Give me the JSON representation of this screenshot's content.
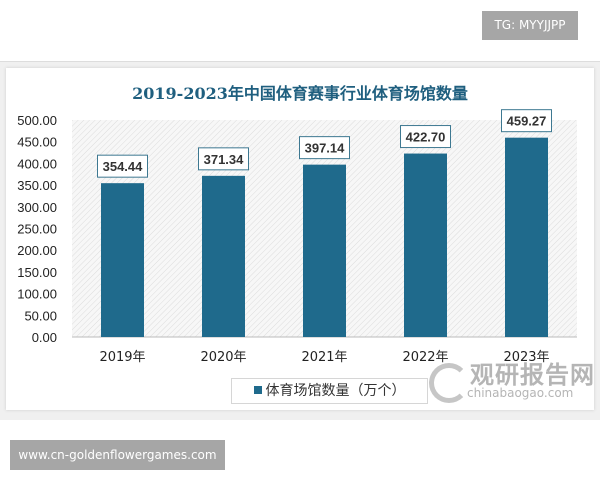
{
  "badge_top": "TG: MYYJJPP",
  "badge_bottom": "www.cn-goldenflowergames.com",
  "watermark": {
    "cn": "观研报告网",
    "en": "chinabaogao.com"
  },
  "chart_data": {
    "type": "bar",
    "title": "2019-2023年中国体育赛事行业体育场馆数量",
    "categories": [
      "2019年",
      "2020年",
      "2021年",
      "2022年",
      "2023年"
    ],
    "series": [
      {
        "name": "体育场馆数量（万个）",
        "values": [
          354.44,
          371.34,
          397.14,
          422.7,
          459.27
        ],
        "color": "#1f6a8c"
      }
    ],
    "data_labels": [
      "354.44",
      "371.34",
      "397.14",
      "422.70",
      "459.27"
    ],
    "ylim": [
      0,
      500
    ],
    "yticks": [
      "0.00",
      "50.00",
      "100.00",
      "150.00",
      "200.00",
      "250.00",
      "300.00",
      "350.00",
      "400.00",
      "450.00",
      "500.00"
    ],
    "grid": false,
    "legend": "bottom"
  }
}
